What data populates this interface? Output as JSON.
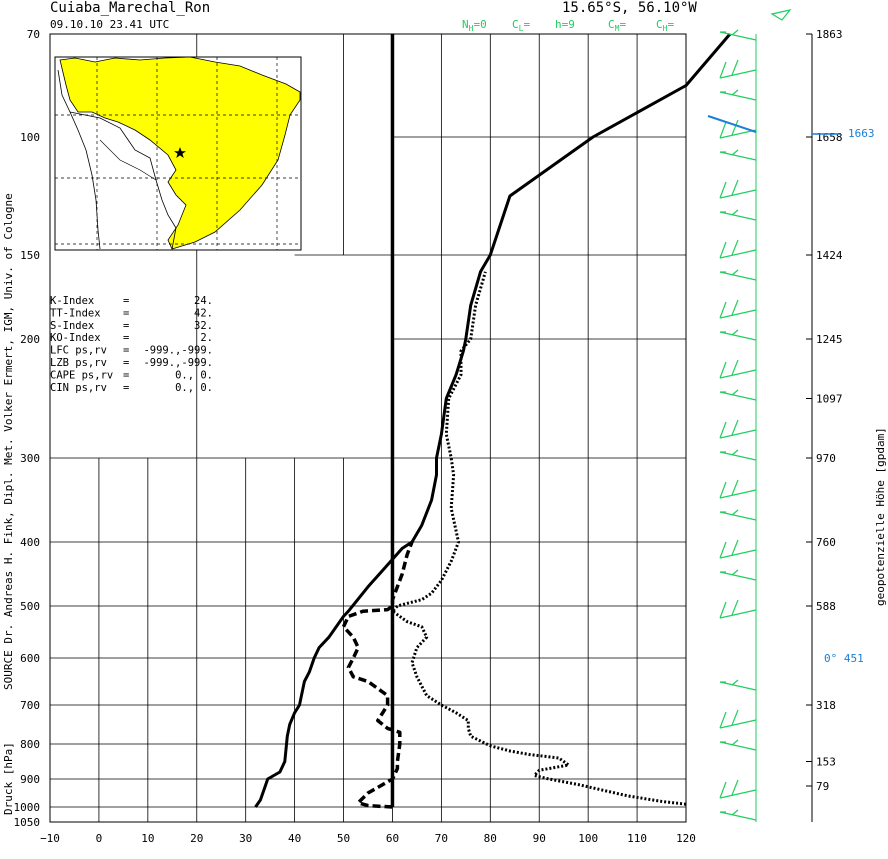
{
  "header": {
    "station": "Cuiaba_Marechal_Ron",
    "datetime": "09.10.10  23.41 UTC",
    "coords": "15.65°S, 56.10°W",
    "cloud_codes": [
      {
        "label": "N",
        "sub": "H",
        "value": "=0"
      },
      {
        "label": "C",
        "sub": "L",
        "value": "="
      },
      {
        "label": "h=9",
        "sub": "",
        "value": ""
      },
      {
        "label": "C",
        "sub": "M",
        "value": "="
      },
      {
        "label": "C",
        "sub": "H",
        "value": "="
      }
    ]
  },
  "side_labels": {
    "left": "SOURCE Dr. Andreas H. Fink, Dipl. Met. Volker Ermert, IGM, Univ. of Cologne",
    "left_axis": "Druck [hPa]",
    "right_axis": "geopotenzielle Höhe [gpdam]"
  },
  "indices": [
    {
      "name": "K-Index",
      "eq": "=",
      "value": "24."
    },
    {
      "name": "TT-Index",
      "eq": "=",
      "value": "42."
    },
    {
      "name": "S-Index",
      "eq": "=",
      "value": "32."
    },
    {
      "name": "KO-Index",
      "eq": "=",
      "value": "2."
    },
    {
      "name": "LFC  ps,rv",
      "eq": "=",
      "value": "-999.,-999."
    },
    {
      "name": "LZB  ps,rv",
      "eq": "=",
      "value": "-999.,-999."
    },
    {
      "name": "CAPE ps,rv",
      "eq": "=",
      "value": "0.,    0."
    },
    {
      "name": "CIN  ps,rv",
      "eq": "=",
      "value": "0.,    0."
    }
  ],
  "map_inset": {
    "region": "South America (Brazil highlighted)",
    "highlight_color": "#ffff00",
    "marker": "star"
  },
  "chart_data": {
    "type": "line",
    "x_ticks": [
      -10,
      0,
      10,
      20,
      30,
      40,
      50,
      60,
      70,
      80,
      90,
      100,
      110,
      120
    ],
    "xlim": [
      -10,
      120
    ],
    "y_ticks": [
      70,
      100,
      150,
      200,
      300,
      400,
      500,
      600,
      700,
      800,
      900,
      1000,
      1050
    ],
    "ylim": [
      1050,
      70
    ],
    "height_labels": [
      {
        "p": 70,
        "label": "1863"
      },
      {
        "p": 100,
        "label": "1658"
      },
      {
        "p": 150,
        "label": "1424"
      },
      {
        "p": 200,
        "label": "1245"
      },
      {
        "p": 250,
        "label": "1097"
      },
      {
        "p": 300,
        "label": "970"
      },
      {
        "p": 400,
        "label": "760"
      },
      {
        "p": 500,
        "label": "588"
      },
      {
        "p": 700,
        "label": "318"
      },
      {
        "p": 850,
        "label": "153"
      },
      {
        "p": 925,
        "label": "79"
      }
    ],
    "tropopause_label": "1663",
    "zero_label": "0°   451",
    "vertical_line_x": 60,
    "series": [
      {
        "style": "solid",
        "points": [
          [
            32,
            1000
          ],
          [
            33,
            975
          ],
          [
            34,
            925
          ],
          [
            34.5,
            900
          ],
          [
            37,
            880
          ],
          [
            38,
            850
          ],
          [
            38.5,
            780
          ],
          [
            39,
            750
          ],
          [
            40,
            720
          ],
          [
            41,
            700
          ],
          [
            42,
            650
          ],
          [
            43,
            630
          ],
          [
            44,
            600
          ],
          [
            45,
            580
          ],
          [
            47,
            560
          ],
          [
            50,
            520
          ],
          [
            51,
            510
          ],
          [
            55,
            470
          ],
          [
            62,
            410
          ],
          [
            64,
            400
          ],
          [
            66,
            380
          ],
          [
            68,
            350
          ],
          [
            69,
            320
          ],
          [
            69,
            300
          ],
          [
            70,
            280
          ],
          [
            71,
            250
          ],
          [
            73,
            230
          ],
          [
            74.5,
            210
          ],
          [
            75,
            200
          ],
          [
            76,
            180
          ],
          [
            78,
            160
          ],
          [
            80,
            150
          ],
          [
            84,
            125
          ],
          [
            101,
            100
          ],
          [
            120,
            85
          ],
          [
            129,
            70
          ]
        ]
      },
      {
        "style": "dashed",
        "points": [
          [
            60,
            1000
          ],
          [
            55,
            995
          ],
          [
            53,
            985
          ],
          [
            55,
            950
          ],
          [
            57,
            930
          ],
          [
            60,
            900
          ],
          [
            61,
            870
          ],
          [
            61,
            850
          ],
          [
            61.5,
            800
          ],
          [
            61.5,
            770
          ],
          [
            59,
            760
          ],
          [
            57,
            740
          ],
          [
            58,
            720
          ],
          [
            59,
            700
          ],
          [
            59,
            680
          ],
          [
            55,
            650
          ],
          [
            52,
            640
          ],
          [
            51,
            620
          ],
          [
            52,
            600
          ],
          [
            53,
            580
          ],
          [
            52,
            560
          ],
          [
            50,
            540
          ],
          [
            51,
            520
          ],
          [
            54,
            510
          ],
          [
            59,
            507
          ],
          [
            60,
            500
          ],
          [
            60,
            490
          ],
          [
            62,
            450
          ],
          [
            63,
            420
          ],
          [
            64,
            400
          ]
        ]
      },
      {
        "style": "dotted",
        "points": [
          [
            120,
            990
          ],
          [
            115,
            980
          ],
          [
            108,
            960
          ],
          [
            98,
            920
          ],
          [
            92,
            900
          ],
          [
            89,
            890
          ],
          [
            90,
            875
          ],
          [
            96,
            860
          ],
          [
            94,
            840
          ],
          [
            88,
            830
          ],
          [
            84,
            820
          ],
          [
            80,
            805
          ],
          [
            76,
            780
          ],
          [
            75.5,
            760
          ],
          [
            75.5,
            740
          ],
          [
            73,
            720
          ],
          [
            70,
            700
          ],
          [
            67,
            680
          ],
          [
            65,
            640
          ],
          [
            64,
            610
          ],
          [
            65,
            580
          ],
          [
            67,
            560
          ],
          [
            66,
            540
          ],
          [
            63,
            530
          ],
          [
            60,
            510
          ],
          [
            61,
            500
          ],
          [
            66,
            490
          ],
          [
            68,
            480
          ],
          [
            70,
            460
          ],
          [
            72,
            430
          ],
          [
            73,
            410
          ],
          [
            73.5,
            400
          ],
          [
            72,
            360
          ],
          [
            72.5,
            320
          ],
          [
            72,
            300
          ],
          [
            71,
            280
          ],
          [
            71.5,
            250
          ],
          [
            74,
            230
          ],
          [
            74,
            210
          ],
          [
            76,
            200
          ],
          [
            77,
            180
          ],
          [
            79,
            160
          ]
        ]
      }
    ]
  }
}
